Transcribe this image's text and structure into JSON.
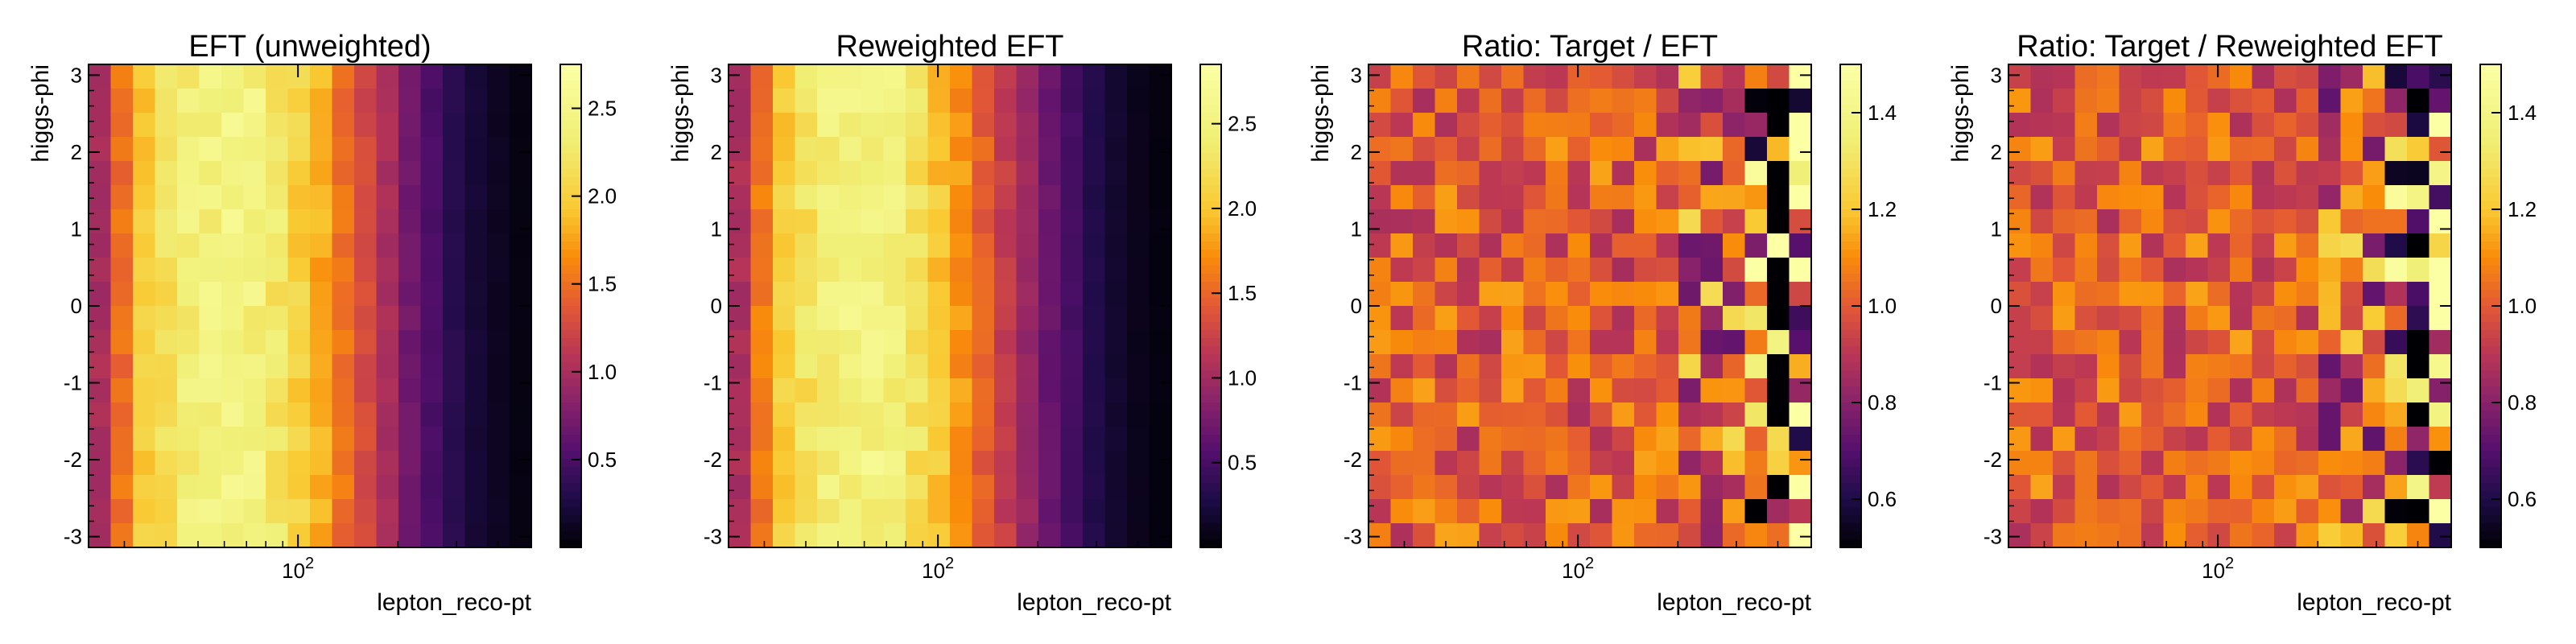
{
  "chart_data": [
    {
      "type": "heatmap",
      "title": "EFT (unweighted)",
      "xlabel": "lepton_reco-pt",
      "ylabel": "higgs-phi",
      "x_scale": "log",
      "x_tick_labels": [
        "10^2"
      ],
      "y_ticks": [
        3,
        2,
        1,
        0,
        -1,
        -2,
        -3
      ],
      "y_tick_labels": [
        "3",
        "2",
        "1",
        "0",
        "-1",
        "-2",
        "-3"
      ],
      "ylim": [
        -3.14,
        3.14
      ],
      "colormap": "inferno",
      "color_range": [
        0.0,
        2.75
      ],
      "colorbar_ticks": [
        2.5,
        2.0,
        1.5,
        1.0,
        0.5
      ],
      "colorbar_tick_labels": [
        "2.5",
        "2.0",
        "1.5",
        "1.0",
        "0.5"
      ],
      "n_x_bins": 20,
      "n_y_bins": 20,
      "column_profile": [
        1.0,
        1.5,
        1.95,
        2.15,
        2.35,
        2.4,
        2.45,
        2.4,
        2.25,
        2.0,
        1.8,
        1.5,
        1.25,
        1.0,
        0.7,
        0.5,
        0.32,
        0.2,
        0.12,
        0.06
      ]
    },
    {
      "type": "heatmap",
      "title": "Reweighted EFT",
      "xlabel": "lepton_reco-pt",
      "ylabel": "higgs-phi",
      "x_scale": "log",
      "x_tick_labels": [
        "10^2"
      ],
      "y_ticks": [
        3,
        2,
        1,
        0,
        -1,
        -2,
        -3
      ],
      "y_tick_labels": [
        "3",
        "2",
        "1",
        "0",
        "-1",
        "-2",
        "-3"
      ],
      "ylim": [
        -3.14,
        3.14
      ],
      "colormap": "inferno",
      "color_range": [
        0.0,
        2.85
      ],
      "colorbar_ticks": [
        2.5,
        2.0,
        1.5,
        1.0,
        0.5
      ],
      "colorbar_tick_labels": [
        "2.5",
        "2.0",
        "1.5",
        "1.0",
        "0.5"
      ],
      "n_x_bins": 20,
      "n_y_bins": 20,
      "column_profile": [
        1.05,
        1.6,
        2.05,
        2.25,
        2.45,
        2.5,
        2.5,
        2.45,
        2.25,
        2.0,
        1.75,
        1.45,
        1.2,
        0.95,
        0.68,
        0.48,
        0.3,
        0.18,
        0.1,
        0.05
      ]
    },
    {
      "type": "heatmap",
      "title": "Ratio: Target / EFT",
      "xlabel": "lepton_reco-pt",
      "ylabel": "higgs-phi",
      "x_scale": "log",
      "x_tick_labels": [
        "10^2"
      ],
      "y_ticks": [
        3,
        2,
        1,
        0,
        -1,
        -2,
        -3
      ],
      "y_tick_labels": [
        "3",
        "2",
        "1",
        "0",
        "-1",
        "-2",
        "-3"
      ],
      "ylim": [
        -3.14,
        3.14
      ],
      "colormap": "inferno",
      "color_range": [
        0.5,
        1.5
      ],
      "colorbar_ticks": [
        1.4,
        1.2,
        1.0,
        0.8,
        0.6
      ],
      "colorbar_tick_labels": [
        "1.4",
        "1.2",
        "1.0",
        "0.8",
        "0.6"
      ],
      "n_x_bins": 20,
      "n_y_bins": 20,
      "noise_seed": 17
    },
    {
      "type": "heatmap",
      "title": "Ratio: Target / Reweighted EFT",
      "xlabel": "lepton_reco-pt",
      "ylabel": "higgs-phi",
      "x_scale": "log",
      "x_tick_labels": [
        "10^2"
      ],
      "y_ticks": [
        3,
        2,
        1,
        0,
        -1,
        -2,
        -3
      ],
      "y_tick_labels": [
        "3",
        "2",
        "1",
        "0",
        "-1",
        "-2",
        "-3"
      ],
      "ylim": [
        -3.14,
        3.14
      ],
      "colormap": "inferno",
      "color_range": [
        0.5,
        1.5
      ],
      "colorbar_ticks": [
        1.4,
        1.2,
        1.0,
        0.8,
        0.6
      ],
      "colorbar_tick_labels": [
        "1.4",
        "1.2",
        "1.0",
        "0.8",
        "0.6"
      ],
      "n_x_bins": 20,
      "n_y_bins": 20,
      "noise_seed": 53
    }
  ]
}
